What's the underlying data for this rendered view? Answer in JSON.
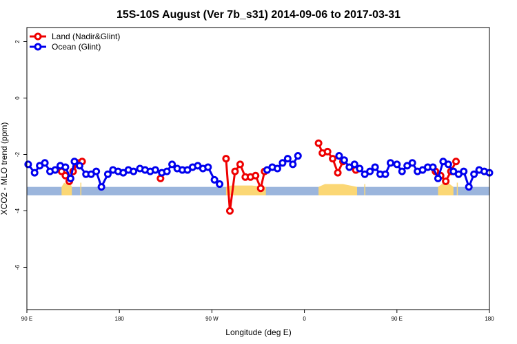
{
  "chart_data": {
    "type": "line",
    "title": "15S-10S August (Ver 7b_s31)   2014-09-06 to 2017-03-31",
    "xlabel": "Longitude (deg E)",
    "ylabel": "XCO2 - MLO trend (ppm)",
    "xlim": [
      0,
      360
    ],
    "ylim": [
      -7.5,
      2.5
    ],
    "x_ticks": [
      {
        "value": 0,
        "label": "90 E"
      },
      {
        "value": 72,
        "label": "180"
      },
      {
        "value": 144,
        "label": "90 W"
      },
      {
        "value": 216,
        "label": "0"
      },
      {
        "value": 288,
        "label": "90 E"
      },
      {
        "value": 360,
        "label": "180"
      }
    ],
    "y_ticks": [
      {
        "value": 2,
        "label": "2"
      },
      {
        "value": 0,
        "label": "0"
      },
      {
        "value": -2,
        "label": "-2"
      },
      {
        "value": -4,
        "label": "-4"
      },
      {
        "value": -6,
        "label": "-6"
      }
    ],
    "grid": false,
    "legend": {
      "position": "top-left"
    },
    "colors": {
      "land": "#ee0000",
      "ocean": "#0000ee",
      "band": "#9bb5dc",
      "land_fill": "#fbd775"
    },
    "background_band": {
      "y_range": [
        -3.45,
        -3.15
      ]
    },
    "land_fill_segments": [
      {
        "x": [
          27,
          29,
          31,
          33,
          35
        ],
        "top": [
          -3.15,
          -3.0,
          -3.05,
          -2.95,
          -3.15
        ]
      },
      {
        "x": 42,
        "top": -3.0
      },
      {
        "x": [
          155,
          159,
          175,
          186
        ],
        "top": [
          -3.15,
          -3.1,
          -3.1,
          -3.15
        ]
      },
      {
        "x": [
          227,
          232,
          246,
          257
        ],
        "top": [
          -3.15,
          -3.05,
          -3.05,
          -3.15
        ]
      },
      {
        "x": 263,
        "top": -3.05
      },
      {
        "x": [
          320,
          323,
          326,
          329,
          332
        ],
        "top": [
          -3.15,
          -3.05,
          -2.9,
          -3.05,
          -3.15
        ]
      },
      {
        "x": 335,
        "top": -3.0
      }
    ],
    "series": [
      {
        "name": "Land (Nadir&Glint)",
        "segments": [
          {
            "x": [
              27,
              30,
              33,
              36,
              39,
              43
            ],
            "y": [
              -2.6,
              -2.75,
              -2.95,
              -2.6,
              -2.3,
              -2.25
            ]
          },
          {
            "x": [
              104
            ],
            "y": [
              -2.85
            ]
          },
          {
            "x": [
              155,
              158,
              162,
              166,
              170,
              174,
              178,
              182,
              185
            ],
            "y": [
              -2.15,
              -4.0,
              -2.6,
              -2.35,
              -2.8,
              -2.8,
              -2.75,
              -3.2,
              -2.6
            ]
          },
          {
            "x": [
              227,
              230,
              234,
              238,
              242,
              246
            ],
            "y": [
              -1.6,
              -1.95,
              -1.9,
              -2.15,
              -2.65,
              -2.25
            ]
          },
          {
            "x": [
              256
            ],
            "y": [
              -2.55
            ]
          },
          {
            "x": [
              318,
              322,
              326,
              330,
              334
            ],
            "y": [
              -2.6,
              -2.75,
              -2.95,
              -2.6,
              -2.25
            ]
          }
        ]
      },
      {
        "name": "Ocean (Glint)",
        "segments": [
          {
            "x": [
              1,
              6,
              10,
              14,
              18,
              22,
              26,
              30,
              34,
              37,
              41,
              46,
              50,
              54,
              58,
              63,
              67,
              71,
              75,
              79,
              83,
              88,
              92,
              96,
              100,
              105,
              109,
              113,
              117,
              121,
              125,
              129,
              133,
              137,
              141,
              146,
              150
            ],
            "y": [
              -2.35,
              -2.65,
              -2.4,
              -2.3,
              -2.6,
              -2.55,
              -2.4,
              -2.45,
              -2.85,
              -2.25,
              -2.4,
              -2.7,
              -2.7,
              -2.6,
              -3.15,
              -2.7,
              -2.55,
              -2.6,
              -2.65,
              -2.55,
              -2.6,
              -2.5,
              -2.55,
              -2.6,
              -2.55,
              -2.65,
              -2.6,
              -2.35,
              -2.5,
              -2.55,
              -2.55,
              -2.45,
              -2.4,
              -2.5,
              -2.45,
              -2.9,
              -3.05
            ]
          },
          {
            "x": [
              187,
              191,
              195,
              199,
              203,
              207,
              211
            ],
            "y": [
              -2.55,
              -2.45,
              -2.5,
              -2.3,
              -2.15,
              -2.35,
              -2.05
            ]
          },
          {
            "x": [
              243,
              247,
              251,
              255,
              259,
              263,
              267,
              271,
              275,
              279,
              283,
              288,
              292,
              296,
              300,
              304,
              308,
              312,
              316,
              320,
              324,
              328,
              332,
              336,
              340,
              344,
              348,
              352,
              356,
              360
            ],
            "y": [
              -2.05,
              -2.2,
              -2.45,
              -2.35,
              -2.5,
              -2.7,
              -2.6,
              -2.45,
              -2.7,
              -2.7,
              -2.3,
              -2.35,
              -2.6,
              -2.4,
              -2.3,
              -2.6,
              -2.55,
              -2.45,
              -2.45,
              -2.85,
              -2.25,
              -2.35,
              -2.6,
              -2.7,
              -2.6,
              -3.15,
              -2.7,
              -2.55,
              -2.6,
              -2.65
            ]
          }
        ]
      }
    ]
  }
}
